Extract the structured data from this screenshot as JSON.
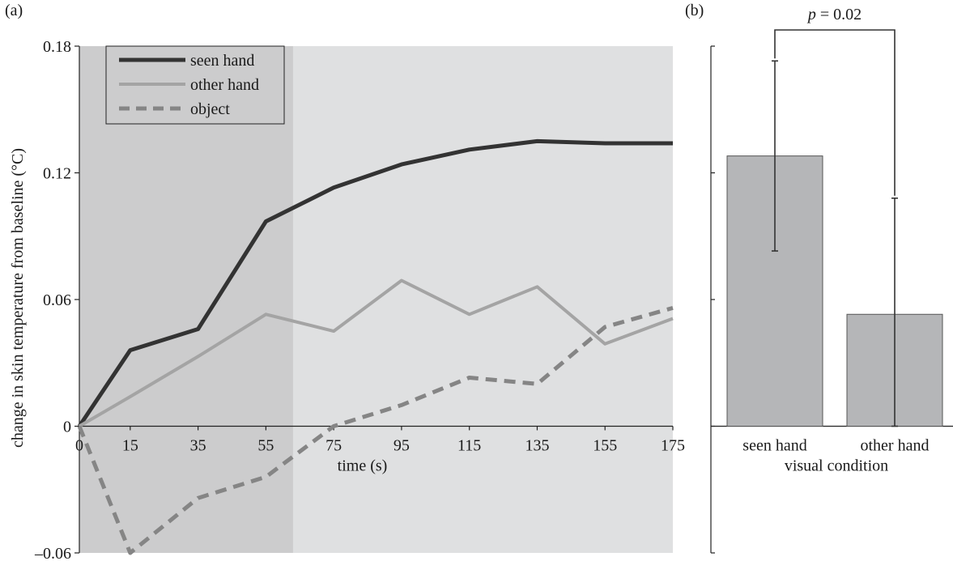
{
  "panel_a_label": "(a)",
  "panel_b_label": "(b)",
  "colors": {
    "seen_hand": "#333333",
    "other_hand": "#a4a4a4",
    "object": "#858585",
    "plot_bg_baseline": "#cccccd",
    "plot_bg_after": "#dfe0e1",
    "bar_fill": "#b5b6b8",
    "axis": "#222222"
  },
  "chart_data": [
    {
      "type": "line",
      "xlabel": "time (s)",
      "ylabel": "change in skin temperature from baseline (°C)",
      "x_ticks": [
        0,
        15,
        35,
        55,
        75,
        95,
        115,
        135,
        155,
        175
      ],
      "x_tick_labels": [
        "0",
        "15",
        "35",
        "55",
        "75",
        "95",
        "115",
        "135",
        "155",
        "175"
      ],
      "y_ticks": [
        -0.06,
        0,
        0.06,
        0.12,
        0.18
      ],
      "y_tick_labels": [
        "–0.06",
        "0",
        "0.06",
        "0.12",
        "0.18"
      ],
      "xlim": [
        0,
        175
      ],
      "ylim": [
        -0.06,
        0.18
      ],
      "shaded_region": {
        "x_start": 0,
        "x_end": 63
      },
      "legend": {
        "position": "top-left"
      },
      "series": [
        {
          "name": "seen hand",
          "style": "solid-dark",
          "x": [
            0,
            15,
            35,
            55,
            75,
            95,
            115,
            135,
            155,
            175
          ],
          "y": [
            0,
            0.036,
            0.046,
            0.097,
            0.113,
            0.124,
            0.131,
            0.135,
            0.134,
            0.134
          ]
        },
        {
          "name": "other hand",
          "style": "solid-light",
          "x": [
            0,
            15,
            35,
            55,
            75,
            95,
            115,
            135,
            155,
            175
          ],
          "y": [
            0,
            0.014,
            0.033,
            0.053,
            0.045,
            0.069,
            0.053,
            0.066,
            0.039,
            0.051
          ]
        },
        {
          "name": "object",
          "style": "dashed",
          "x": [
            0,
            15,
            35,
            55,
            75,
            95,
            115,
            135,
            155,
            175
          ],
          "y": [
            0,
            -0.06,
            -0.034,
            -0.024,
            0,
            0.01,
            0.023,
            0.02,
            0.047,
            0.056
          ]
        }
      ]
    },
    {
      "type": "bar",
      "xlabel": "visual condition",
      "categories": [
        "seen hand",
        "other hand"
      ],
      "values": [
        0.128,
        0.053
      ],
      "error_low": [
        0.083,
        0.0
      ],
      "error_high": [
        0.173,
        0.108
      ],
      "ylim": [
        -0.06,
        0.18
      ],
      "y_ticks": [
        -0.06,
        0,
        0.06,
        0.12,
        0.18
      ],
      "significance": {
        "text": "p = 0.02",
        "between": [
          "seen hand",
          "other hand"
        ]
      }
    }
  ]
}
